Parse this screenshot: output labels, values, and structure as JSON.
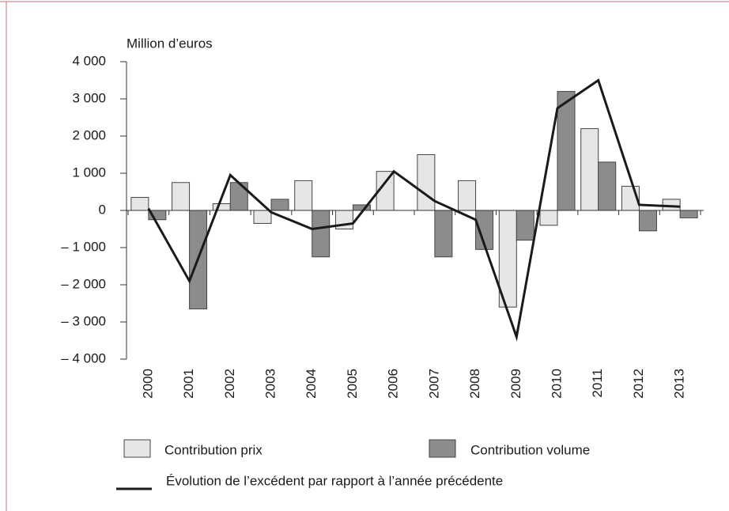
{
  "chart_data": {
    "type": "bar",
    "y_label": "Million d’euros",
    "categories": [
      "2000",
      "2001",
      "2002",
      "2003",
      "2004",
      "2005",
      "2006",
      "2007",
      "2008",
      "2009",
      "2010",
      "2011",
      "2012",
      "2013"
    ],
    "series": [
      {
        "name": "Contribution prix",
        "type": "bar",
        "color": "#e6e6e6",
        "values": [
          350,
          750,
          180,
          -350,
          800,
          -500,
          1050,
          1500,
          800,
          -2600,
          -400,
          2200,
          650,
          300
        ]
      },
      {
        "name": "Contribution volume",
        "type": "bar",
        "color": "#8c8c8c",
        "values": [
          -250,
          -2650,
          750,
          300,
          -1250,
          150,
          0,
          -1250,
          -1050,
          -800,
          3200,
          1300,
          -550,
          -200
        ]
      },
      {
        "name": "Évolution de l’excédent par rapport à l’année précédente",
        "type": "line",
        "color": "#1a1a1a",
        "values": [
          50,
          -1900,
          950,
          -50,
          -500,
          -350,
          1050,
          250,
          -250,
          -3400,
          2750,
          3500,
          150,
          100
        ]
      }
    ],
    "ylim": [
      -4000,
      4000
    ],
    "yticks": [
      {
        "value": -4000,
        "label": "– 4 000"
      },
      {
        "value": -3000,
        "label": "– 3 000"
      },
      {
        "value": -2000,
        "label": "– 2 000"
      },
      {
        "value": -1000,
        "label": "– 1 000"
      },
      0,
      {
        "value": 1000,
        "label": "1 000"
      },
      {
        "value": 2000,
        "label": "2 000"
      },
      {
        "value": 3000,
        "label": "3 000"
      },
      {
        "value": 4000,
        "label": "4 000"
      }
    ]
  }
}
